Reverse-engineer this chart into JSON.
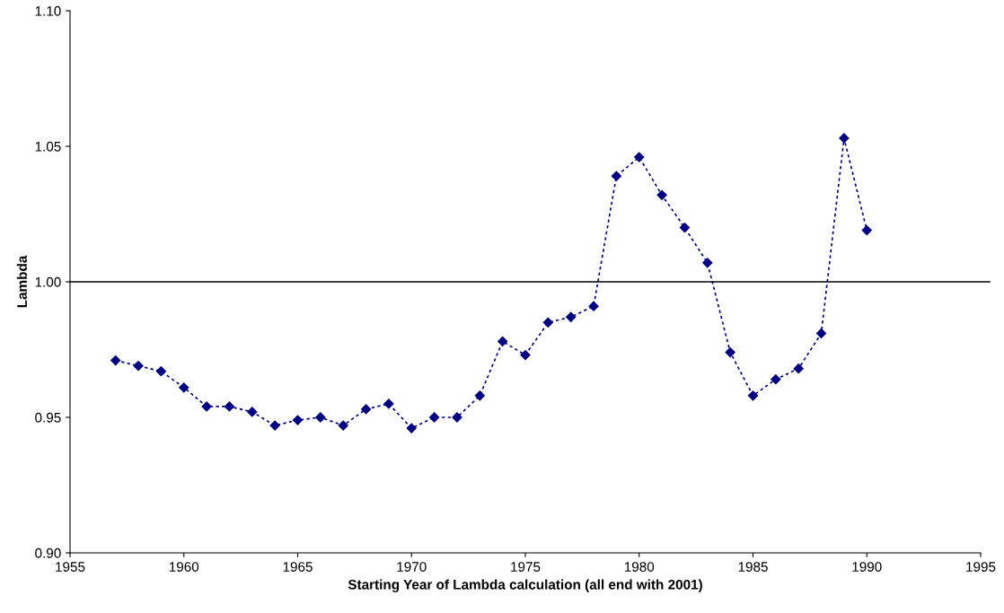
{
  "chart_data": {
    "type": "line",
    "xlabel": "Starting Year of Lambda calculation (all end with 2001)",
    "ylabel": "Lambda",
    "x": [
      1957,
      1958,
      1959,
      1960,
      1961,
      1962,
      1963,
      1964,
      1965,
      1966,
      1967,
      1968,
      1969,
      1970,
      1971,
      1972,
      1973,
      1974,
      1975,
      1976,
      1977,
      1978,
      1979,
      1980,
      1981,
      1982,
      1983,
      1984,
      1985,
      1986,
      1987,
      1988,
      1989,
      1990
    ],
    "series": [
      {
        "color": "#000080",
        "values": [
          0.971,
          0.969,
          0.967,
          0.961,
          0.954,
          0.954,
          0.952,
          0.947,
          0.949,
          0.95,
          0.947,
          0.953,
          0.955,
          0.946,
          0.95,
          0.95,
          0.958,
          0.978,
          0.973,
          0.985,
          0.987,
          0.991,
          1.039,
          1.046,
          1.032,
          1.02,
          1.007,
          0.974,
          0.958,
          0.964,
          0.968,
          0.981,
          1.053,
          1.019
        ]
      }
    ],
    "xlim": [
      1955,
      1995
    ],
    "xticks": [
      1955,
      1960,
      1965,
      1970,
      1975,
      1980,
      1985,
      1990,
      1995
    ],
    "ylim": [
      0.9,
      1.1
    ],
    "yticks": [
      {
        "value": 0.9,
        "label": "0.90"
      },
      {
        "value": 0.95,
        "label": "0.95"
      },
      {
        "value": 1.0,
        "label": "1.00"
      },
      {
        "value": 1.05,
        "label": "1.05"
      },
      {
        "value": 1.1,
        "label": "1.10"
      }
    ],
    "ref_lines": [
      {
        "axis": "y",
        "value": 1.0,
        "color": "#000000",
        "line_style": "solid"
      }
    ],
    "grid": false,
    "legend": false,
    "marker": "diamond",
    "line_style": "dotted"
  }
}
